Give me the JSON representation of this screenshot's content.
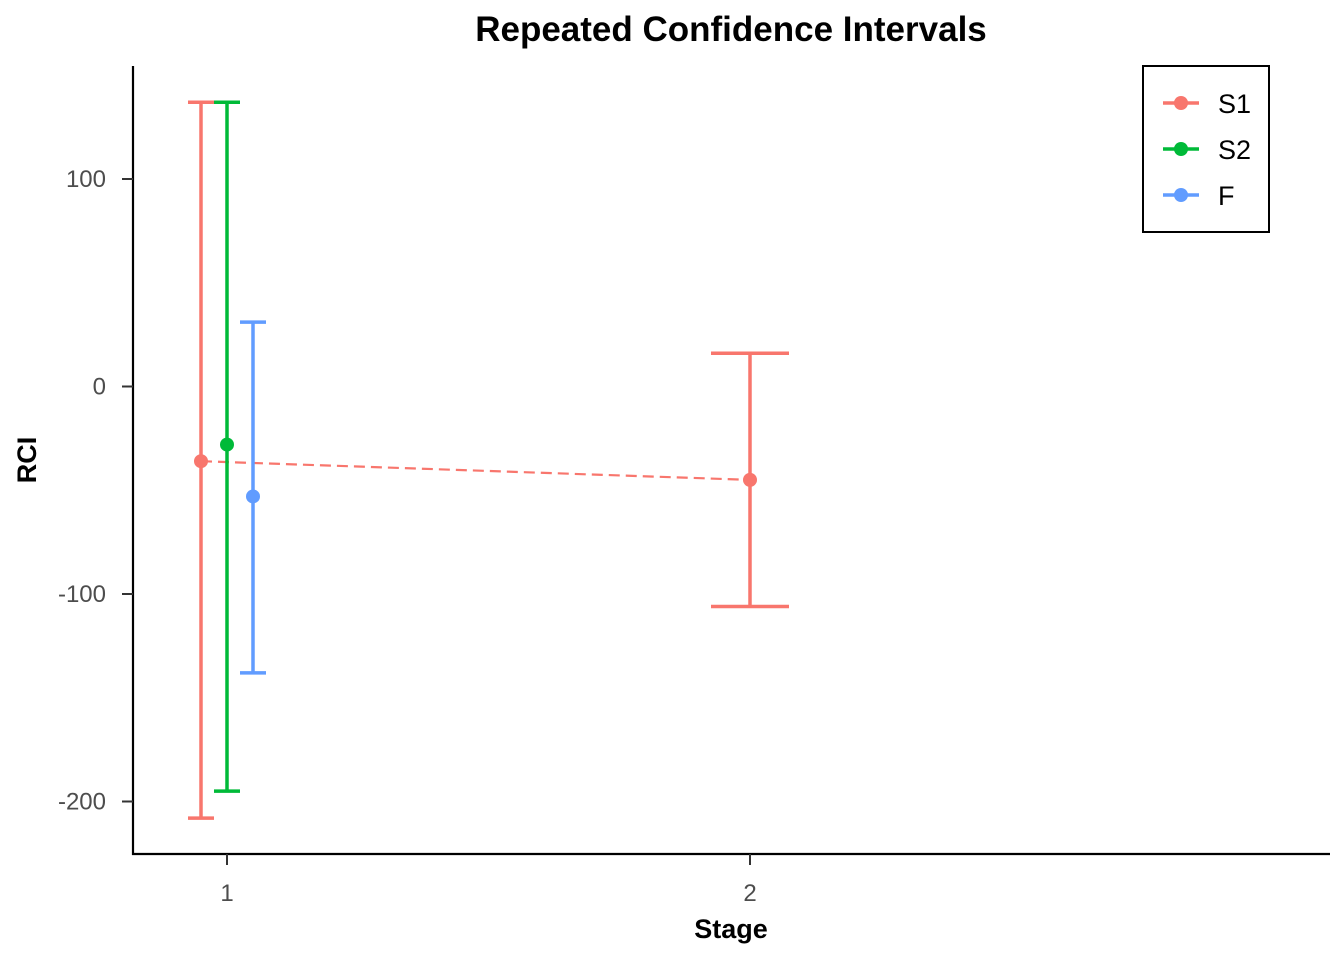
{
  "chart_data": {
    "type": "scatter",
    "title": "Repeated Confidence Intervals",
    "xlabel": "Stage",
    "ylabel": "RCI",
    "x_ticks": [
      1,
      2
    ],
    "y_ticks": [
      -200,
      -100,
      0,
      100
    ],
    "xlim": [
      0.82,
      3.1
    ],
    "ylim": [
      -225,
      154
    ],
    "grid": false,
    "legend_position": "top-right",
    "series": [
      {
        "name": "S1",
        "color": "#F8766D",
        "points": [
          {
            "stage": 1,
            "estimate": -36,
            "lower": -208,
            "upper": 137
          },
          {
            "stage": 2,
            "estimate": -45,
            "lower": -106,
            "upper": 16
          }
        ],
        "connect": "dashed"
      },
      {
        "name": "S2",
        "color": "#00BA38",
        "points": [
          {
            "stage": 1,
            "estimate": -28,
            "lower": -195,
            "upper": 137
          }
        ]
      },
      {
        "name": "F",
        "color": "#619CFF",
        "points": [
          {
            "stage": 1,
            "estimate": -53,
            "lower": -138,
            "upper": 31
          }
        ]
      }
    ]
  }
}
